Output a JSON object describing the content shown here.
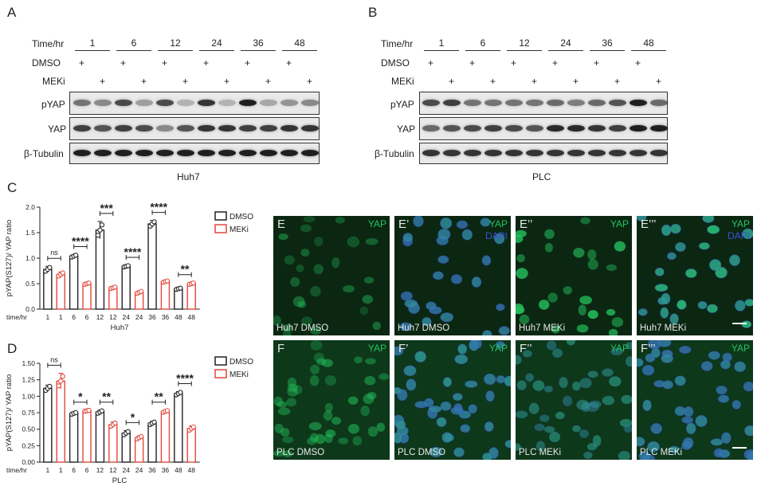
{
  "panel_letters": {
    "A": "A",
    "B": "B",
    "C": "C",
    "D": "D"
  },
  "blot_common": {
    "time_label": "Time/hr",
    "times": [
      "1",
      "6",
      "12",
      "24",
      "36",
      "48"
    ],
    "dmso_label": "DMSO",
    "meki_label": "MEKi",
    "plus": "+",
    "rows": [
      "pYAP",
      "YAP",
      "β-Tubulin"
    ]
  },
  "blotA": {
    "cell_line": "Huh7"
  },
  "blotB": {
    "cell_line": "PLC"
  },
  "legend": {
    "dmso": "DMSO",
    "meki": "MEKi"
  },
  "colors": {
    "dmso": "#222222",
    "meki": "#e4473b",
    "yap_green": "#25c35f",
    "dapi_blue": "#3b4fd6"
  },
  "chart_data": [
    {
      "type": "bar",
      "panel": "C",
      "ylabel": "pYAP(S127)/ YAP ratio",
      "xlabel": "Huh7",
      "x_axis_label": "time/hr",
      "categories": [
        "1",
        "1",
        "6",
        "6",
        "12",
        "12",
        "24",
        "24",
        "36",
        "36",
        "48",
        "48"
      ],
      "groups": [
        "DMSO",
        "MEKi",
        "DMSO",
        "MEKi",
        "DMSO",
        "MEKi",
        "DMSO",
        "MEKi",
        "DMSO",
        "MEKi",
        "DMSO",
        "MEKi"
      ],
      "values": [
        0.78,
        0.68,
        1.04,
        0.5,
        1.55,
        0.42,
        0.84,
        0.33,
        1.67,
        0.54,
        0.4,
        0.5
      ],
      "errors": [
        0.06,
        0.05,
        0.03,
        0.02,
        0.17,
        0.02,
        0.02,
        0.03,
        0.07,
        0.02,
        0.02,
        0.02
      ],
      "ylim": [
        0,
        2.0
      ],
      "yticks": [
        "0.0",
        "0.5",
        "1.0",
        "1.5",
        "2.0"
      ],
      "significance": [
        "ns",
        "****",
        "***",
        "****",
        "****",
        "**"
      ]
    },
    {
      "type": "bar",
      "panel": "D",
      "ylabel": "pYAP(S127)/ YAP ratio",
      "xlabel": "PLC",
      "x_axis_label": "time/hr",
      "categories": [
        "1",
        "1",
        "6",
        "6",
        "12",
        "12",
        "24",
        "24",
        "36",
        "36",
        "48",
        "48"
      ],
      "groups": [
        "DMSO",
        "MEKi",
        "DMSO",
        "MEKi",
        "DMSO",
        "MEKi",
        "DMSO",
        "MEKi",
        "DMSO",
        "MEKi",
        "DMSO",
        "MEKi"
      ],
      "values": [
        1.12,
        1.23,
        0.74,
        0.78,
        0.76,
        0.57,
        0.44,
        0.37,
        0.59,
        0.77,
        1.04,
        0.51
      ],
      "errors": [
        0.05,
        0.12,
        0.02,
        0.01,
        0.03,
        0.04,
        0.04,
        0.03,
        0.03,
        0.02,
        0.03,
        0.04
      ],
      "ylim": [
        0,
        1.5
      ],
      "yticks": [
        "0.00",
        "0.25",
        "0.50",
        "0.75",
        "1.00",
        "1.25",
        "1.50"
      ],
      "significance": [
        "ns",
        "*",
        "**",
        "*",
        "**",
        "****"
      ]
    }
  ],
  "micrographs": {
    "row_E": [
      {
        "letter": "E",
        "top": "YAP",
        "dapi": "",
        "caption": "Huh7 DMSO"
      },
      {
        "letter": "E’",
        "top": "YAP",
        "dapi": "DAPI",
        "caption": "Huh7 DMSO"
      },
      {
        "letter": "E’’",
        "top": "YAP",
        "dapi": "",
        "caption": "Huh7 MEKi"
      },
      {
        "letter": "E’’’",
        "top": "YAP",
        "dapi": "DAPI",
        "caption": "Huh7 MEKi"
      }
    ],
    "row_F": [
      {
        "letter": "F",
        "top": "YAP",
        "dapi": "",
        "caption": "PLC DMSO"
      },
      {
        "letter": "F’",
        "top": "YAP",
        "dapi": "",
        "caption": "PLC DMSO"
      },
      {
        "letter": "F’’",
        "top": "YAP",
        "dapi": "",
        "caption": "PLC MEKi"
      },
      {
        "letter": "F’’’",
        "top": "YAP",
        "dapi": "",
        "caption": "PLC MEKi"
      }
    ]
  }
}
